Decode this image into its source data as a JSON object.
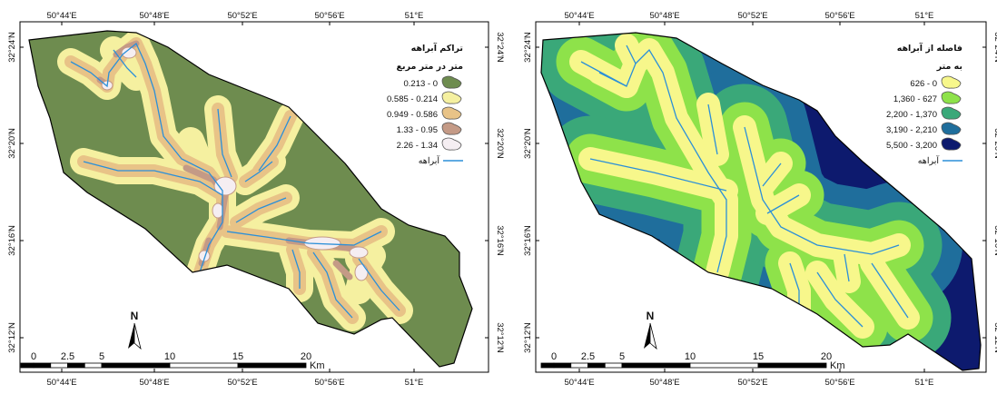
{
  "maps": [
    {
      "id": "left",
      "legend": {
        "title": "تراکم آبراهه",
        "subtitle": "متر در متر مربع",
        "classes": [
          {
            "label": "0.213 - 0",
            "color": "#6e8c4f"
          },
          {
            "label": "0.585 - 0.214",
            "color": "#f5f0a0"
          },
          {
            "label": "0.949 - 0.586",
            "color": "#e8c387"
          },
          {
            "label": "1.33 - 0.95",
            "color": "#c49a86"
          },
          {
            "label": "2.26 - 1.34",
            "color": "#f5eef2"
          }
        ],
        "stream_label": "آبراهه",
        "stream_color": "#2b8fd8"
      }
    },
    {
      "id": "right",
      "legend": {
        "title": "فاصله از آبراهه",
        "subtitle": "به متر",
        "classes": [
          {
            "label": "626 - 0",
            "color": "#f7f78b"
          },
          {
            "label": "1,360 - 627",
            "color": "#8ee24a"
          },
          {
            "label": "2,200 - 1,370",
            "color": "#3aa879"
          },
          {
            "label": "3,190 - 2,210",
            "color": "#1f6e9c"
          },
          {
            "label": "5,500 - 3,200",
            "color": "#0d1a6e"
          }
        ],
        "stream_label": "آبراهه",
        "stream_color": "#2b8fd8"
      }
    }
  ],
  "axis": {
    "lon_ticks": [
      "50°44'E",
      "50°48'E",
      "50°52'E",
      "50°56'E",
      "51°E"
    ],
    "lat_ticks": [
      "32°24'N",
      "32°20'N",
      "32°16'N",
      "32°12'N"
    ]
  },
  "scalebar": {
    "labels": [
      "0",
      "2.5",
      "5",
      "10",
      "15",
      "20"
    ],
    "unit": "Km"
  },
  "north_label": "N"
}
